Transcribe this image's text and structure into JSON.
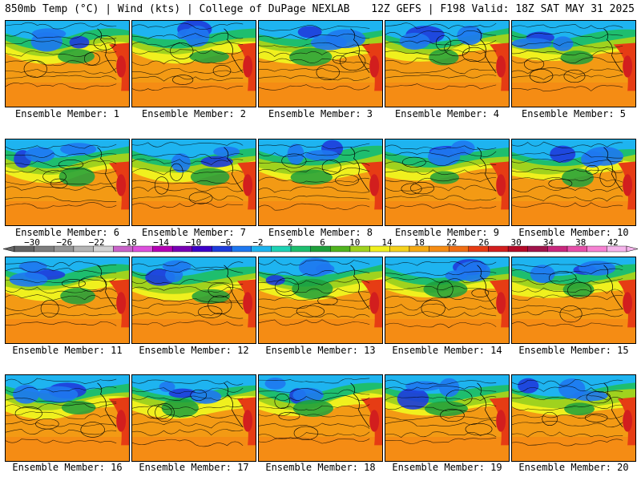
{
  "header": {
    "left": "850mb Temp (°C) | Wind (kts) | College of DuPage NEXLAB",
    "right": "12Z GEFS | F198 Valid: 18Z SAT MAY 31 2025"
  },
  "panels": [
    {
      "label": "Ensemble Member: 1"
    },
    {
      "label": "Ensemble Member: 2"
    },
    {
      "label": "Ensemble Member: 3"
    },
    {
      "label": "Ensemble Member: 4"
    },
    {
      "label": "Ensemble Member: 5"
    },
    {
      "label": "Ensemble Member: 6"
    },
    {
      "label": "Ensemble Member: 7"
    },
    {
      "label": "Ensemble Member: 8"
    },
    {
      "label": "Ensemble Member: 9"
    },
    {
      "label": "Ensemble Member: 10"
    },
    {
      "label": "Ensemble Member: 11"
    },
    {
      "label": "Ensemble Member: 12"
    },
    {
      "label": "Ensemble Member: 13"
    },
    {
      "label": "Ensemble Member: 14"
    },
    {
      "label": "Ensemble Member: 15"
    },
    {
      "label": "Ensemble Member: 16"
    },
    {
      "label": "Ensemble Member: 17"
    },
    {
      "label": "Ensemble Member: 18"
    },
    {
      "label": "Ensemble Member: 19"
    },
    {
      "label": "Ensemble Member: 20"
    }
  ],
  "colorbar": {
    "tick_labels": [
      "−30",
      "−26",
      "−22",
      "−18",
      "−14",
      "−10",
      "−6",
      "−2",
      "2",
      "6",
      "10",
      "14",
      "18",
      "22",
      "26",
      "30",
      "34",
      "38",
      "42"
    ],
    "colors": [
      "#646464",
      "#7d7d7d",
      "#969696",
      "#b4b4b4",
      "#d2d2d2",
      "#c864c8",
      "#dc50dc",
      "#b400b4",
      "#7800b4",
      "#3c00c8",
      "#1e3cdc",
      "#1e78f0",
      "#1eb4f0",
      "#1ed2b4",
      "#1ebe6e",
      "#1ea03c",
      "#50b41e",
      "#a0d21e",
      "#f0f01e",
      "#f5d21e",
      "#f5aa14",
      "#f58c14",
      "#f06e14",
      "#e63c14",
      "#d21e1e",
      "#b40a28",
      "#a0144b",
      "#c8287d",
      "#e650aa",
      "#f582d2",
      "#f5b4eb"
    ]
  }
}
